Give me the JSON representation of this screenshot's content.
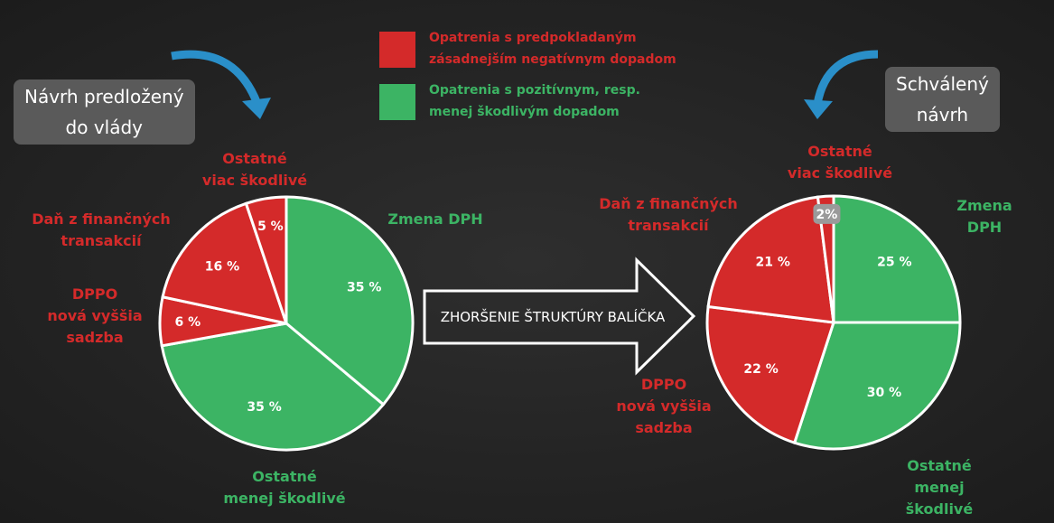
{
  "legend": [
    {
      "label": "Opatrenia s predpokladaným\nzásadnejším negatívnym dopadom",
      "color": "#d42a2a"
    },
    {
      "label": "Opatrenia s pozitívnym, resp.\nmenej škodlivým dopadom",
      "color": "#3cb464"
    }
  ],
  "arrow_text": "ZHORŠENIE ŠTRUKTÚRY BALÍČKA",
  "chart_data": [
    {
      "type": "pie",
      "title": "Návrh predložený\ndo vlády",
      "categories": [
        "Zmena DPH",
        "Ostatné\nmenej škodlivé",
        "DPPO\nnová vyššia\nsadzba",
        "Daň z finančných\ntransakcií",
        "Ostatné\nviac škodlivé"
      ],
      "values": [
        35,
        35,
        6,
        16,
        5
      ],
      "value_labels": [
        "35 %",
        "35 %",
        "6 %",
        "16 %",
        "5 %"
      ],
      "colors": [
        "#3cb464",
        "#3cb464",
        "#d42a2a",
        "#d42a2a",
        "#d42a2a"
      ]
    },
    {
      "type": "pie",
      "title": "Schválený\nnávrh",
      "categories": [
        "Zmena DPH",
        "Ostatné\nmenej škodlivé",
        "DPPO\nnová vyššia\nsadzba",
        "Daň z finančných\ntransakcií",
        "Ostatné\nviac škodlivé"
      ],
      "values": [
        25,
        30,
        22,
        21,
        2
      ],
      "value_labels": [
        "25 %",
        "30 %",
        "22 %",
        "21 %",
        "2%"
      ],
      "colors": [
        "#3cb464",
        "#3cb464",
        "#d42a2a",
        "#d42a2a",
        "#d42a2a"
      ]
    }
  ]
}
